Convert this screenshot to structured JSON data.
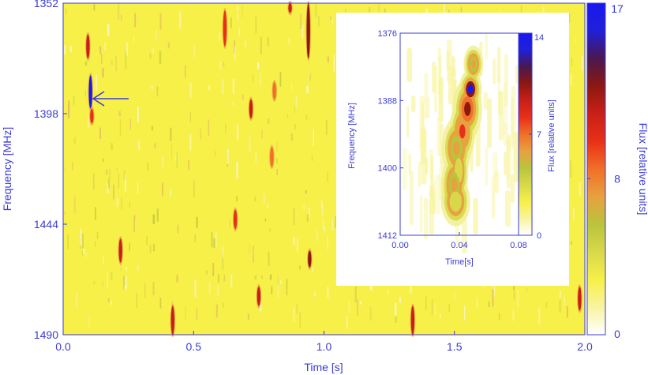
{
  "colors": {
    "axis": "#3b3bd6",
    "background": "#f7f048",
    "colormap": [
      "#ffffff",
      "#f8f4a0",
      "#f7f048",
      "#d8d84a",
      "#b9c43c",
      "#e8a040",
      "#f07028",
      "#e83018",
      "#c82018",
      "#8c1810",
      "#4a1850",
      "#2020d8",
      "#1818f0"
    ]
  },
  "chart_data": [
    {
      "id": "main",
      "type": "heatmap",
      "xlabel": "Time [s]",
      "ylabel": "Frequency [MHz]",
      "colorbar_label": "Flux [relative units]",
      "xlim": [
        0.0,
        2.0
      ],
      "ylim": [
        1352,
        1490
      ],
      "y_inverted": true,
      "xticks": [
        "0.0",
        "0.5",
        "1.0",
        "1.5",
        "2.0"
      ],
      "yticks": [
        "1352",
        "1398",
        "1444",
        "1490"
      ],
      "colorbar_range": [
        0,
        17
      ],
      "colorbar_ticks": [
        "0",
        "8",
        "17"
      ],
      "annotation": "arrow pointing at burst near t = 0.1 s, 1390 MHz",
      "bursts": [
        {
          "t": 0.095,
          "f0": 1365,
          "f1": 1375,
          "flux": 12
        },
        {
          "t": 0.105,
          "f0": 1382,
          "f1": 1396,
          "flux": 17
        },
        {
          "t": 0.11,
          "f0": 1396,
          "f1": 1402,
          "flux": 10
        },
        {
          "t": 0.22,
          "f0": 1450,
          "f1": 1460,
          "flux": 12
        },
        {
          "t": 0.42,
          "f0": 1478,
          "f1": 1490,
          "flux": 11
        },
        {
          "t": 0.62,
          "f0": 1355,
          "f1": 1370,
          "flux": 10
        },
        {
          "t": 0.66,
          "f0": 1438,
          "f1": 1446,
          "flux": 10
        },
        {
          "t": 0.72,
          "f0": 1392,
          "f1": 1400,
          "flux": 12
        },
        {
          "t": 0.75,
          "f0": 1470,
          "f1": 1478,
          "flux": 11
        },
        {
          "t": 0.8,
          "f0": 1412,
          "f1": 1420,
          "flux": 9
        },
        {
          "t": 0.81,
          "f0": 1385,
          "f1": 1392,
          "flux": 9
        },
        {
          "t": 0.87,
          "f0": 1352,
          "f1": 1356,
          "flux": 12
        },
        {
          "t": 0.94,
          "f0": 1352,
          "f1": 1375,
          "flux": 13
        },
        {
          "t": 0.945,
          "f0": 1455,
          "f1": 1462,
          "flux": 13
        },
        {
          "t": 1.34,
          "f0": 1478,
          "f1": 1490,
          "flux": 12
        },
        {
          "t": 1.98,
          "f0": 1470,
          "f1": 1480,
          "flux": 12
        }
      ]
    },
    {
      "id": "inset",
      "type": "heatmap",
      "xlabel": "Time[s]",
      "ylabel": "Frequency [MHz]",
      "colorbar_label": "Flux [relative units]",
      "xlim": [
        0.0,
        0.08
      ],
      "ylim": [
        1376,
        1412
      ],
      "y_inverted": true,
      "xticks": [
        "0.00",
        "0.04",
        "0.08"
      ],
      "yticks": [
        "1376",
        "1388",
        "1400",
        "1412"
      ],
      "colorbar_range": [
        0,
        14
      ],
      "colorbar_ticks": [
        "0",
        "7",
        "14"
      ],
      "burst": [
        {
          "t": 0.0475,
          "f": 1386.0,
          "sig_t": 0.0035,
          "sig_f": 1.6,
          "flux": 14
        },
        {
          "t": 0.0455,
          "f": 1389.5,
          "sig_t": 0.0045,
          "sig_f": 2.5,
          "flux": 10
        },
        {
          "t": 0.042,
          "f": 1393.5,
          "sig_t": 0.004,
          "sig_f": 2.5,
          "flux": 8
        },
        {
          "t": 0.038,
          "f": 1396.5,
          "sig_t": 0.0045,
          "sig_f": 2.5,
          "flux": 6
        },
        {
          "t": 0.0395,
          "f": 1400.5,
          "sig_t": 0.003,
          "sig_f": 2.5,
          "flux": 4
        },
        {
          "t": 0.0365,
          "f": 1403.0,
          "sig_t": 0.004,
          "sig_f": 2.5,
          "flux": 6
        },
        {
          "t": 0.0375,
          "f": 1406.0,
          "sig_t": 0.0045,
          "sig_f": 2.0,
          "flux": 4
        },
        {
          "t": 0.0495,
          "f": 1381.5,
          "sig_t": 0.003,
          "sig_f": 1.5,
          "flux": 6
        }
      ]
    }
  ]
}
